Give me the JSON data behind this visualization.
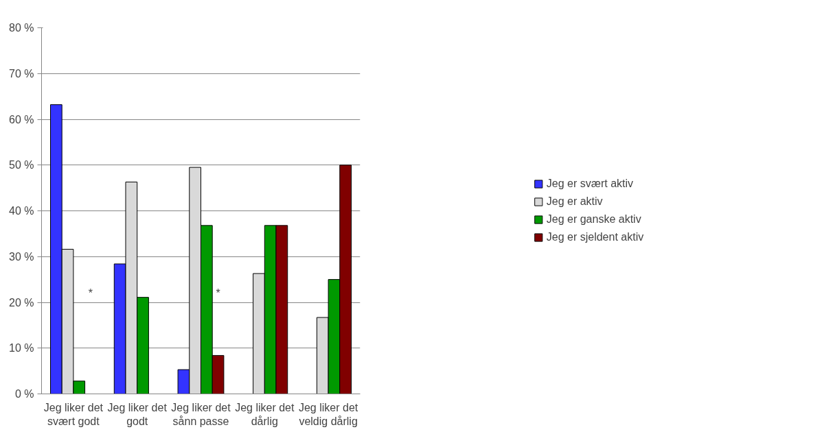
{
  "chart_data": {
    "type": "bar",
    "categories": [
      "Jeg liker det svært godt",
      "Jeg liker det godt",
      "Jeg liker det sånn passe",
      "Jeg liker det dårlig",
      "Jeg liker det veldig dårlig"
    ],
    "series": [
      {
        "name": "Jeg er svært aktiv",
        "color": "#3333ff",
        "values": [
          63.2,
          28.4,
          5.3,
          null,
          null
        ]
      },
      {
        "name": "Jeg er aktiv",
        "color": "#d9d9d9",
        "values": [
          31.6,
          46.3,
          49.5,
          26.3,
          16.7
        ]
      },
      {
        "name": "Jeg er ganske aktiv",
        "color": "#009900",
        "values": [
          2.8,
          21.1,
          36.8,
          36.8,
          25.0
        ]
      },
      {
        "name": "Jeg er sjeldent aktiv",
        "color": "#800000",
        "values": [
          null,
          null,
          8.4,
          36.8,
          50.0
        ]
      }
    ],
    "ylim": [
      0,
      80
    ],
    "yticks": [
      {
        "value": 0,
        "label": "0 %"
      },
      {
        "value": 10,
        "label": "10 %"
      },
      {
        "value": 20,
        "label": "20 %"
      },
      {
        "value": 30,
        "label": "30 %"
      },
      {
        "value": 40,
        "label": "40 %"
      },
      {
        "value": 50,
        "label": "50 %"
      },
      {
        "value": 60,
        "label": "60 %"
      },
      {
        "value": 70,
        "label": "70 %"
      },
      {
        "value": 80,
        "label": "80 %"
      }
    ],
    "grid": "y",
    "legend": "right",
    "annotations": [
      {
        "text": "*",
        "x": "Jeg liker det svært godt",
        "y": 22
      },
      {
        "text": "*",
        "x": "Jeg liker det sånn passe",
        "y": 22
      }
    ]
  }
}
